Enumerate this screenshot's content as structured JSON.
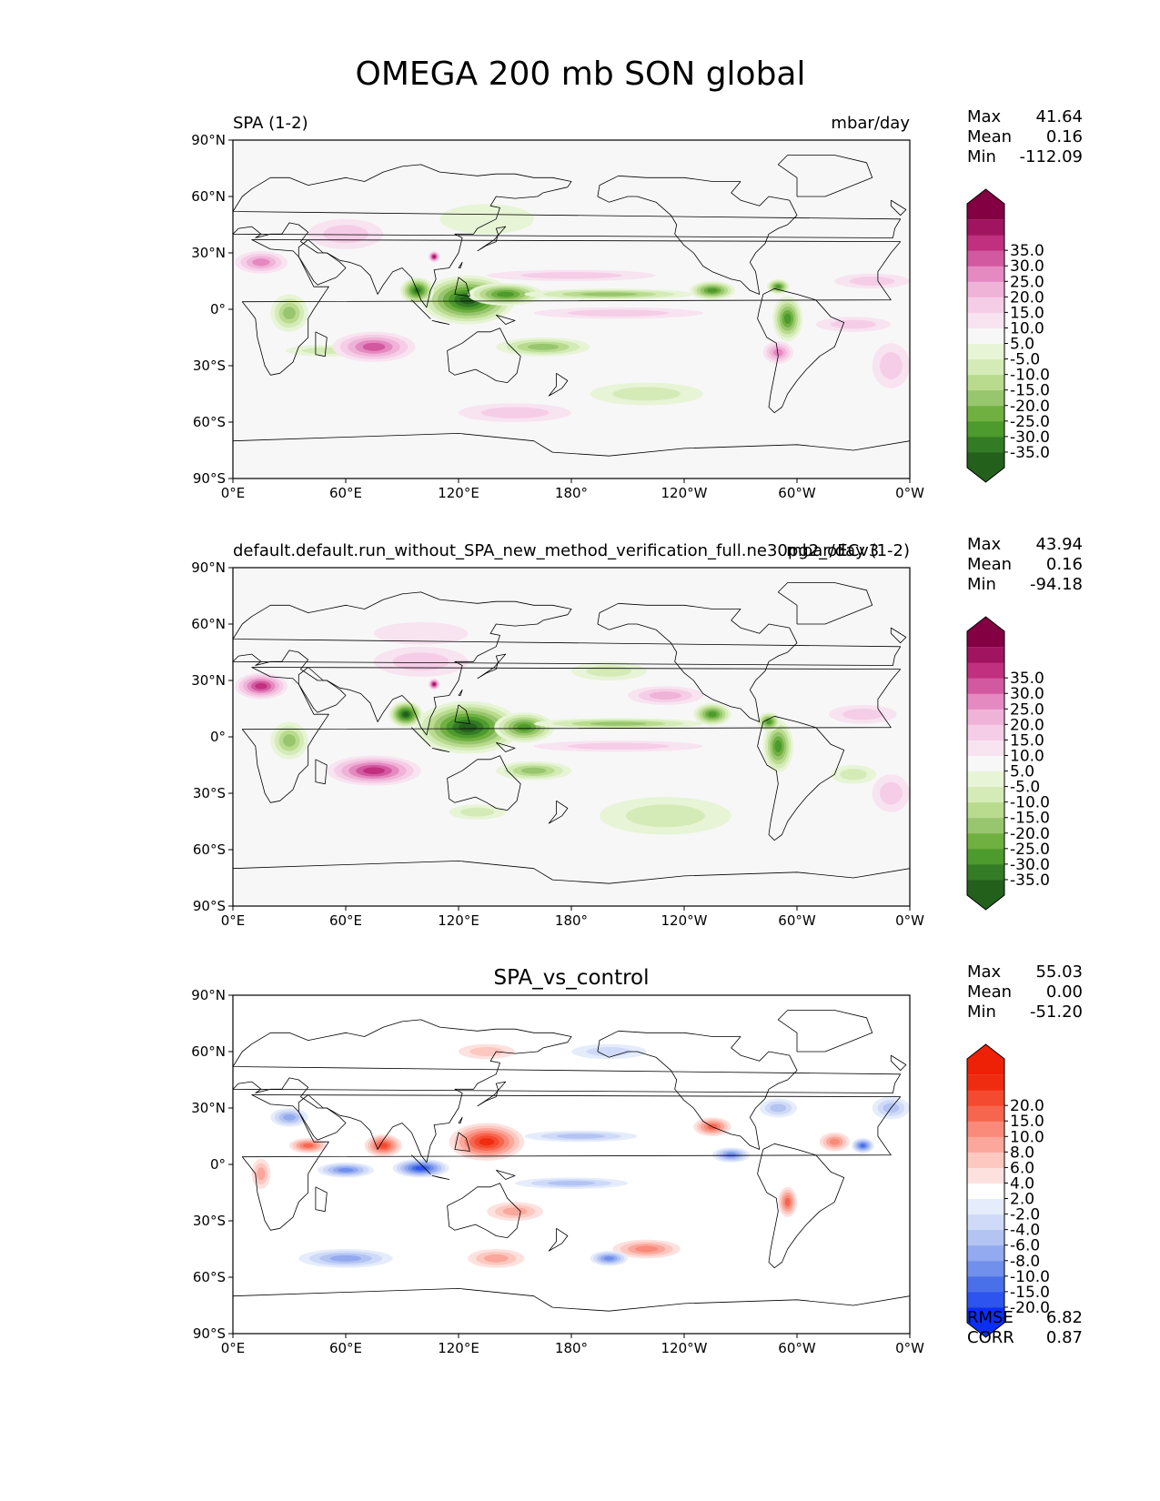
{
  "title": "OMEGA 200 mb SON global",
  "chart_data": [
    {
      "type": "heatmap",
      "panel": "test",
      "left_title": "SPA (1-2)",
      "center_title": "",
      "units": "mbar/day",
      "stats": [
        {
          "label": "Max",
          "value": "41.64"
        },
        {
          "label": "Mean",
          "value": "0.16"
        },
        {
          "label": "Min",
          "value": "-112.09"
        }
      ],
      "colorbar": {
        "colors": [
          "#23601c",
          "#337b25",
          "#4d9a2d",
          "#6fb040",
          "#98c66e",
          "#b9db8e",
          "#d4ebb7",
          "#e7f4d6",
          "#f7f7f7",
          "#f8e3f1",
          "#f5cde6",
          "#f0b3d8",
          "#e589c1",
          "#d2599f",
          "#c1307f",
          "#a1145f",
          "#830042"
        ],
        "labels": [
          "-35.0",
          "-30.0",
          "-25.0",
          "-20.0",
          "-15.0",
          "-10.0",
          "-5.0",
          "5.0",
          "10.0",
          "15.0",
          "20.0",
          "25.0",
          "30.0",
          "35.0"
        ],
        "extend": "both"
      },
      "xticks": [
        "0°E",
        "60°E",
        "120°E",
        "180°",
        "120°W",
        "60°W",
        "0°W"
      ],
      "yticks": [
        "90°N",
        "60°N",
        "30°N",
        "0°",
        "30°S",
        "60°S",
        "90°S"
      ],
      "features": [
        {
          "lon": 125,
          "lat": 5,
          "rx": 25,
          "ry": 13,
          "v": -40
        },
        {
          "lon": 98,
          "lat": 10,
          "rx": 9,
          "ry": 7,
          "v": -35
        },
        {
          "lon": 145,
          "lat": 8,
          "rx": 20,
          "ry": 6,
          "v": -28
        },
        {
          "lon": 200,
          "lat": 8,
          "rx": 45,
          "ry": 3,
          "v": -22
        },
        {
          "lon": 255,
          "lat": 10,
          "rx": 12,
          "ry": 5,
          "v": -30
        },
        {
          "lon": 295,
          "lat": -5,
          "rx": 8,
          "ry": 12,
          "v": -30
        },
        {
          "lon": 290,
          "lat": 12,
          "rx": 6,
          "ry": 4,
          "v": -30
        },
        {
          "lon": 30,
          "lat": -2,
          "rx": 10,
          "ry": 10,
          "v": -20
        },
        {
          "lon": 165,
          "lat": -20,
          "rx": 25,
          "ry": 5,
          "v": -18
        },
        {
          "lon": 220,
          "lat": -45,
          "rx": 30,
          "ry": 6,
          "v": -12
        },
        {
          "lon": 50,
          "lat": -22,
          "rx": 22,
          "ry": 3,
          "v": -10
        },
        {
          "lon": 135,
          "lat": 48,
          "rx": 25,
          "ry": 8,
          "v": -7
        },
        {
          "lon": 75,
          "lat": -20,
          "rx": 22,
          "ry": 8,
          "v": 25
        },
        {
          "lon": 15,
          "lat": 25,
          "rx": 14,
          "ry": 6,
          "v": 22
        },
        {
          "lon": 107,
          "lat": 28,
          "rx": 3,
          "ry": 3,
          "v": 35
        },
        {
          "lon": 290,
          "lat": -23,
          "rx": 8,
          "ry": 6,
          "v": 18
        },
        {
          "lon": 205,
          "lat": -2,
          "rx": 45,
          "ry": 3,
          "v": 12
        },
        {
          "lon": 180,
          "lat": 18,
          "rx": 45,
          "ry": 3,
          "v": 10
        },
        {
          "lon": 340,
          "lat": 15,
          "rx": 20,
          "ry": 4,
          "v": 8
        },
        {
          "lon": 350,
          "lat": -30,
          "rx": 10,
          "ry": 12,
          "v": 12
        },
        {
          "lon": 60,
          "lat": 40,
          "rx": 20,
          "ry": 8,
          "v": 12
        },
        {
          "lon": 330,
          "lat": -8,
          "rx": 20,
          "ry": 4,
          "v": 10
        },
        {
          "lon": 150,
          "lat": -55,
          "rx": 30,
          "ry": 5,
          "v": 8
        }
      ]
    },
    {
      "type": "heatmap",
      "panel": "reference",
      "left_title": "default.default.run_without_SPA_new_method_verification_full.ne30pg2_oECv3",
      "center_title": "",
      "units": "mbar/day (1-2)",
      "stats": [
        {
          "label": "Max",
          "value": "43.94"
        },
        {
          "label": "Mean",
          "value": "0.16"
        },
        {
          "label": "Min",
          "value": "-94.18"
        }
      ],
      "colorbar": {
        "colors": [
          "#23601c",
          "#337b25",
          "#4d9a2d",
          "#6fb040",
          "#98c66e",
          "#b9db8e",
          "#d4ebb7",
          "#e7f4d6",
          "#f7f7f7",
          "#f8e3f1",
          "#f5cde6",
          "#f0b3d8",
          "#e589c1",
          "#d2599f",
          "#c1307f",
          "#a1145f",
          "#830042"
        ],
        "labels": [
          "-35.0",
          "-30.0",
          "-25.0",
          "-20.0",
          "-15.0",
          "-10.0",
          "-5.0",
          "5.0",
          "10.0",
          "15.0",
          "20.0",
          "25.0",
          "30.0",
          "35.0"
        ],
        "extend": "both"
      },
      "xticks": [
        "0°E",
        "60°E",
        "120°E",
        "180°",
        "120°W",
        "60°W",
        "0°W"
      ],
      "yticks": [
        "90°N",
        "60°N",
        "30°N",
        "0°",
        "30°S",
        "60°S",
        "90°S"
      ],
      "features": [
        {
          "lon": 125,
          "lat": 5,
          "rx": 28,
          "ry": 14,
          "v": -40
        },
        {
          "lon": 92,
          "lat": 12,
          "rx": 9,
          "ry": 7,
          "v": -38
        },
        {
          "lon": 155,
          "lat": 5,
          "rx": 16,
          "ry": 8,
          "v": -30
        },
        {
          "lon": 205,
          "lat": 7,
          "rx": 45,
          "ry": 3,
          "v": -22
        },
        {
          "lon": 255,
          "lat": 12,
          "rx": 10,
          "ry": 6,
          "v": -32
        },
        {
          "lon": 290,
          "lat": -5,
          "rx": 8,
          "ry": 14,
          "v": -30
        },
        {
          "lon": 285,
          "lat": 8,
          "rx": 6,
          "ry": 5,
          "v": -32
        },
        {
          "lon": 30,
          "lat": -2,
          "rx": 10,
          "ry": 10,
          "v": -20
        },
        {
          "lon": 160,
          "lat": -18,
          "rx": 20,
          "ry": 5,
          "v": -18
        },
        {
          "lon": 230,
          "lat": -42,
          "rx": 35,
          "ry": 10,
          "v": -12
        },
        {
          "lon": 130,
          "lat": -40,
          "rx": 15,
          "ry": 4,
          "v": -12
        },
        {
          "lon": 330,
          "lat": -20,
          "rx": 12,
          "ry": 5,
          "v": -10
        },
        {
          "lon": 75,
          "lat": -18,
          "rx": 25,
          "ry": 8,
          "v": 28
        },
        {
          "lon": 15,
          "lat": 27,
          "rx": 14,
          "ry": 7,
          "v": 28
        },
        {
          "lon": 107,
          "lat": 28,
          "rx": 3,
          "ry": 3,
          "v": 35
        },
        {
          "lon": 230,
          "lat": 22,
          "rx": 20,
          "ry": 5,
          "v": 15
        },
        {
          "lon": 205,
          "lat": -5,
          "rx": 45,
          "ry": 3,
          "v": 12
        },
        {
          "lon": 335,
          "lat": 12,
          "rx": 18,
          "ry": 5,
          "v": 10
        },
        {
          "lon": 100,
          "lat": 40,
          "rx": 25,
          "ry": 8,
          "v": 10
        },
        {
          "lon": 350,
          "lat": -30,
          "rx": 10,
          "ry": 10,
          "v": 10
        },
        {
          "lon": 200,
          "lat": 35,
          "rx": 20,
          "ry": 5,
          "v": -8
        },
        {
          "lon": 100,
          "lat": 55,
          "rx": 25,
          "ry": 6,
          "v": 6
        }
      ]
    },
    {
      "type": "heatmap",
      "panel": "difference",
      "left_title": "",
      "center_title": "SPA_vs_control",
      "units": "",
      "stats": [
        {
          "label": "Max",
          "value": "55.03"
        },
        {
          "label": "Mean",
          "value": "0.00"
        },
        {
          "label": "Min",
          "value": "-51.20"
        }
      ],
      "metrics": [
        {
          "label": "RMSE",
          "value": "6.82"
        },
        {
          "label": "CORR",
          "value": "0.87"
        }
      ],
      "colorbar": {
        "colors": [
          "#0b2ff6",
          "#2d54ee",
          "#4a70e9",
          "#7090ec",
          "#93aaf0",
          "#b3c4f3",
          "#cfdaf8",
          "#e5ecfb",
          "#ffffff",
          "#fde1de",
          "#fcc8c0",
          "#fba79b",
          "#fa8a79",
          "#f6664f",
          "#f44a30",
          "#f02c10",
          "#ee2005"
        ],
        "labels": [
          "-20.0",
          "-15.0",
          "-10.0",
          "-8.0",
          "-6.0",
          "-4.0",
          "-2.0",
          "2.0",
          "4.0",
          "6.0",
          "8.0",
          "10.0",
          "15.0",
          "20.0"
        ],
        "extend": "both"
      },
      "xticks": [
        "0°E",
        "60°E",
        "120°E",
        "180°",
        "120°W",
        "60°W",
        "0°W"
      ],
      "yticks": [
        "90°N",
        "60°N",
        "30°N",
        "0°",
        "30°S",
        "60°S",
        "90°S"
      ],
      "features": [
        {
          "lon": 135,
          "lat": 12,
          "rx": 20,
          "ry": 10,
          "v": 20
        },
        {
          "lon": 80,
          "lat": 10,
          "rx": 10,
          "ry": 6,
          "v": 18
        },
        {
          "lon": 100,
          "lat": -2,
          "rx": 15,
          "ry": 5,
          "v": -20
        },
        {
          "lon": 60,
          "lat": -3,
          "rx": 15,
          "ry": 4,
          "v": -15
        },
        {
          "lon": 40,
          "lat": 10,
          "rx": 10,
          "ry": 4,
          "v": 15
        },
        {
          "lon": 30,
          "lat": 25,
          "rx": 10,
          "ry": 5,
          "v": -12
        },
        {
          "lon": 320,
          "lat": 12,
          "rx": 8,
          "ry": 5,
          "v": 12
        },
        {
          "lon": 335,
          "lat": 10,
          "rx": 6,
          "ry": 4,
          "v": -18
        },
        {
          "lon": 255,
          "lat": 20,
          "rx": 10,
          "ry": 5,
          "v": 15
        },
        {
          "lon": 265,
          "lat": 5,
          "rx": 10,
          "ry": 4,
          "v": -15
        },
        {
          "lon": 220,
          "lat": -45,
          "rx": 18,
          "ry": 5,
          "v": 12
        },
        {
          "lon": 200,
          "lat": -50,
          "rx": 10,
          "ry": 4,
          "v": -15
        },
        {
          "lon": 60,
          "lat": -50,
          "rx": 25,
          "ry": 5,
          "v": -12
        },
        {
          "lon": 140,
          "lat": -50,
          "rx": 15,
          "ry": 5,
          "v": 10
        },
        {
          "lon": 150,
          "lat": -25,
          "rx": 15,
          "ry": 5,
          "v": 10
        },
        {
          "lon": 180,
          "lat": -10,
          "rx": 30,
          "ry": 3,
          "v": -8
        },
        {
          "lon": 185,
          "lat": 15,
          "rx": 30,
          "ry": 3,
          "v": -8
        },
        {
          "lon": 295,
          "lat": -20,
          "rx": 5,
          "ry": 8,
          "v": 15
        },
        {
          "lon": 15,
          "lat": -5,
          "rx": 5,
          "ry": 8,
          "v": 10
        },
        {
          "lon": 290,
          "lat": 30,
          "rx": 10,
          "ry": 5,
          "v": -8
        },
        {
          "lon": 350,
          "lat": 30,
          "rx": 10,
          "ry": 6,
          "v": -10
        },
        {
          "lon": 135,
          "lat": 60,
          "rx": 15,
          "ry": 4,
          "v": 6
        },
        {
          "lon": 200,
          "lat": 60,
          "rx": 20,
          "ry": 4,
          "v": -5
        }
      ]
    }
  ]
}
